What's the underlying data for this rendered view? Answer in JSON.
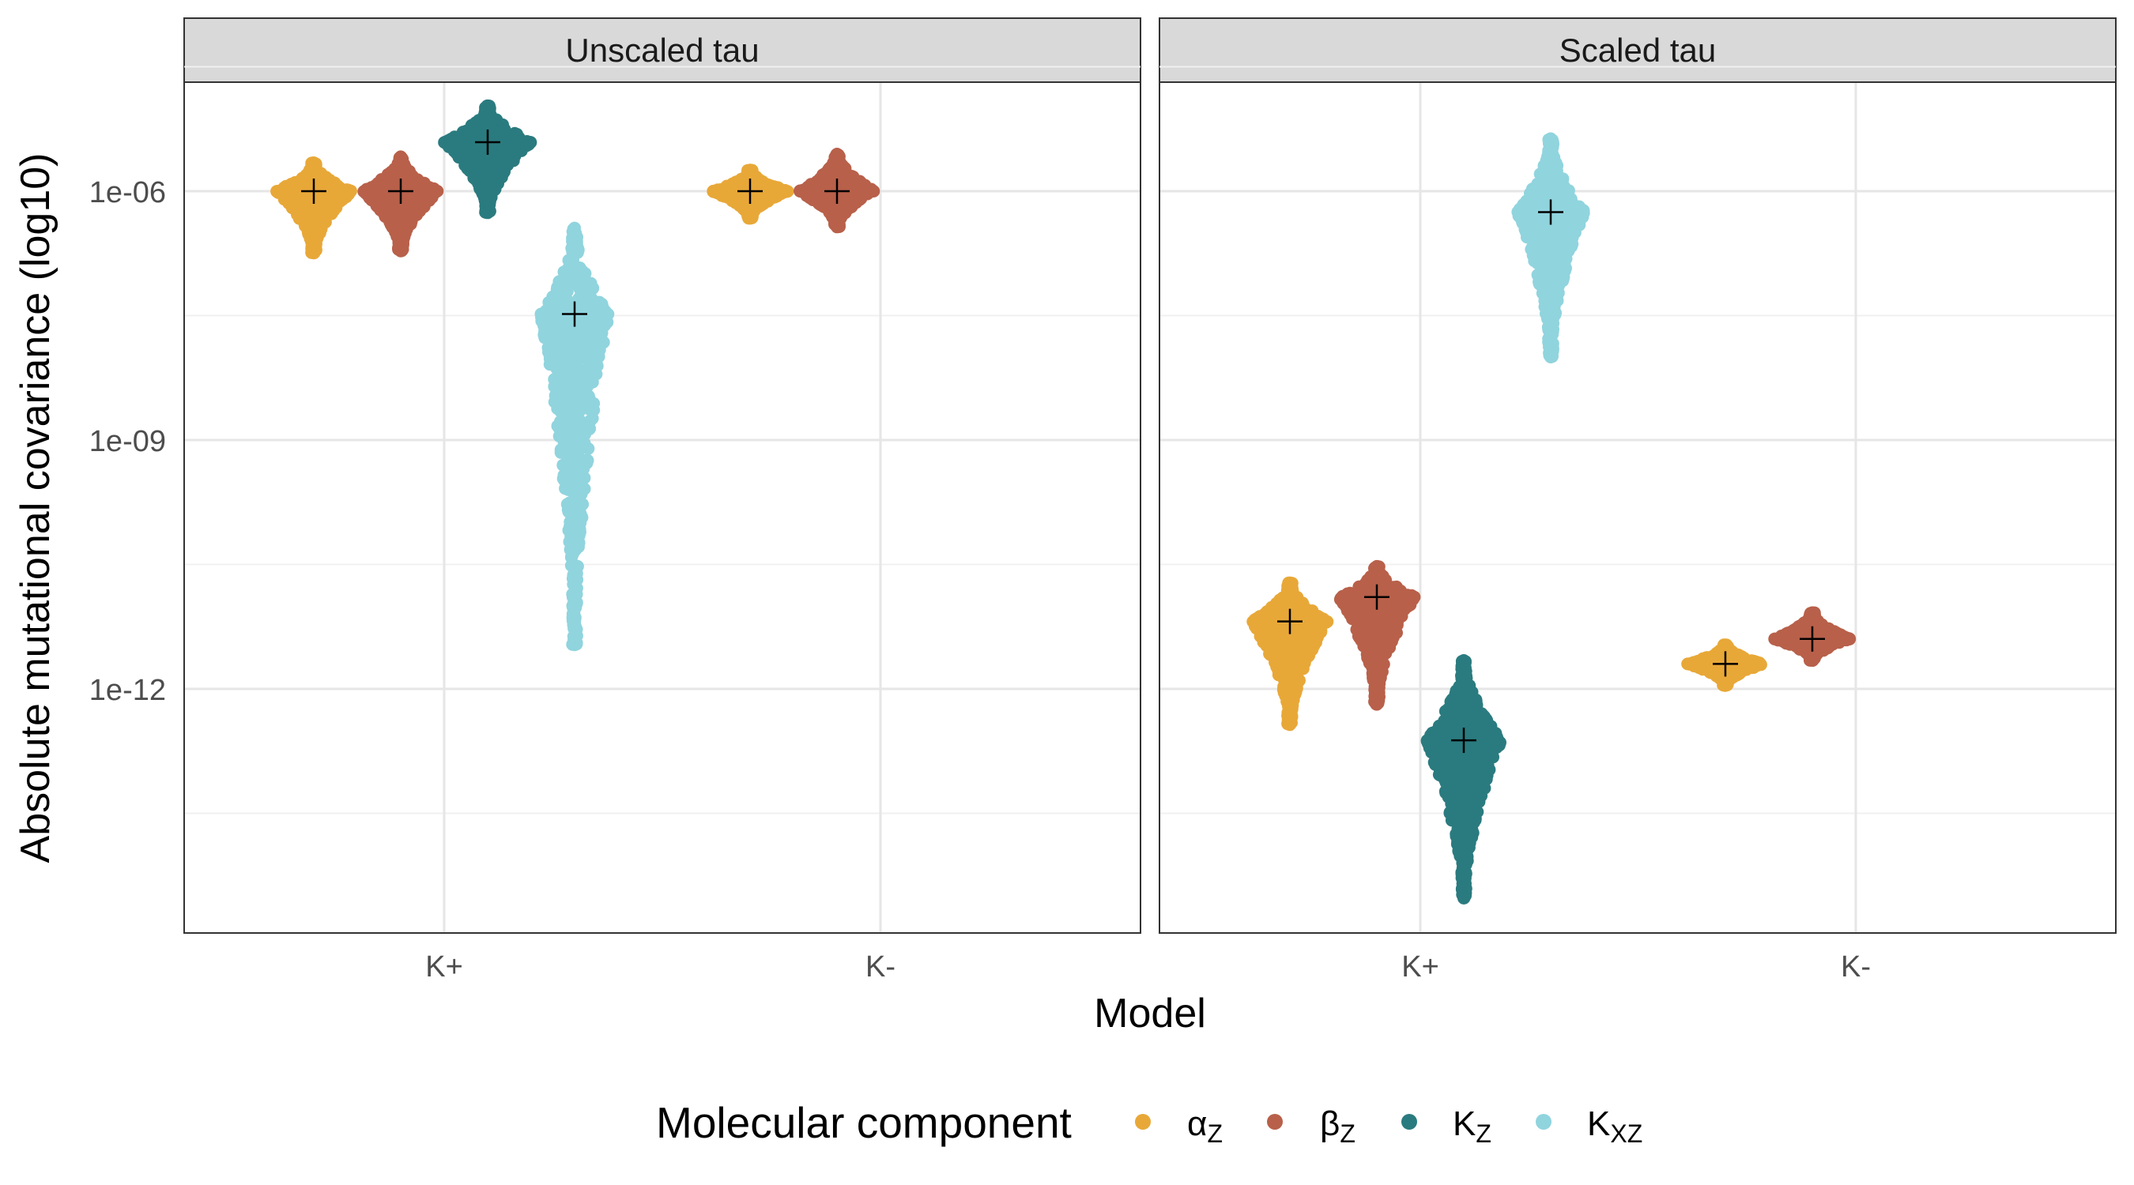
{
  "chart_data": {
    "type": "scatter",
    "subtype": "faceted beeswarm with mean markers",
    "y_scale": "log10",
    "ylabel": "Absolute mutational covariance (log10)",
    "xlabel": "Model",
    "ylim": [
      "1e-15",
      "1e-04"
    ],
    "y_ticks": [
      "1e-06",
      "1e-09",
      "1e-12"
    ],
    "x_categories": [
      "K+",
      "K-"
    ],
    "grid": true,
    "legend": {
      "title": "Molecular component",
      "position": "bottom",
      "entries": [
        {
          "key": "alpha_z",
          "base": "α",
          "sub": "Z",
          "color": "#E8A838"
        },
        {
          "key": "beta_z",
          "base": "β",
          "sub": "Z",
          "color": "#B8604A"
        },
        {
          "key": "K_z",
          "base": "K",
          "sub": "Z",
          "color": "#2A7B7F"
        },
        {
          "key": "K_xz",
          "base": "K",
          "sub": "XZ",
          "color": "#90D4DE"
        }
      ]
    },
    "mean_marker": "+",
    "panels": [
      {
        "title": "Unscaled tau",
        "groups": [
          {
            "model": "K+",
            "component": "alpha_z",
            "center": "1e-06",
            "spread_low": "1.8e-07",
            "spread_high": "2.2e-06",
            "width": 1.0
          },
          {
            "model": "K+",
            "component": "beta_z",
            "center": "1e-06",
            "spread_low": "1.9e-07",
            "spread_high": "2.6e-06",
            "width": 1.0
          },
          {
            "model": "K+",
            "component": "K_z",
            "center": "3.9e-06",
            "spread_low": "5.5e-07",
            "spread_high": "1.07e-05",
            "width": 1.15
          },
          {
            "model": "K+",
            "component": "K_xz",
            "center": "3.3e-08",
            "spread_low": "3.4e-12",
            "spread_high": "3.6e-07",
            "width": 0.9
          },
          {
            "model": "K-",
            "component": "alpha_z",
            "center": "1e-06",
            "spread_low": "4.7e-07",
            "spread_high": "1.8e-06",
            "width": 1.0
          },
          {
            "model": "K-",
            "component": "beta_z",
            "center": "1e-06",
            "spread_low": "3.7e-07",
            "spread_high": "2.8e-06",
            "width": 1.0
          }
        ]
      },
      {
        "title": "Scaled tau",
        "groups": [
          {
            "model": "K+",
            "component": "alpha_z",
            "center": "6.5e-12",
            "spread_low": "3.7e-13",
            "spread_high": "1.9e-11",
            "width": 1.0
          },
          {
            "model": "K+",
            "component": "beta_z",
            "center": "1.28e-11",
            "spread_low": "6.5e-13",
            "spread_high": "3e-11",
            "width": 1.0
          },
          {
            "model": "K+",
            "component": "K_z",
            "center": "2.4e-13",
            "spread_low": "3e-15",
            "spread_high": "2.2e-12",
            "width": 1.0
          },
          {
            "model": "K+",
            "component": "K_xz",
            "center": "5.6e-07",
            "spread_low": "1e-08",
            "spread_high": "4.3e-06",
            "width": 0.9
          },
          {
            "model": "K-",
            "component": "alpha_z",
            "center": "2e-12",
            "spread_low": "1.1e-12",
            "spread_high": "3.4e-12",
            "width": 1.0
          },
          {
            "model": "K-",
            "component": "beta_z",
            "center": "4e-12",
            "spread_low": "2.2e-12",
            "spread_high": "8.3e-12",
            "width": 1.0
          }
        ]
      }
    ]
  }
}
